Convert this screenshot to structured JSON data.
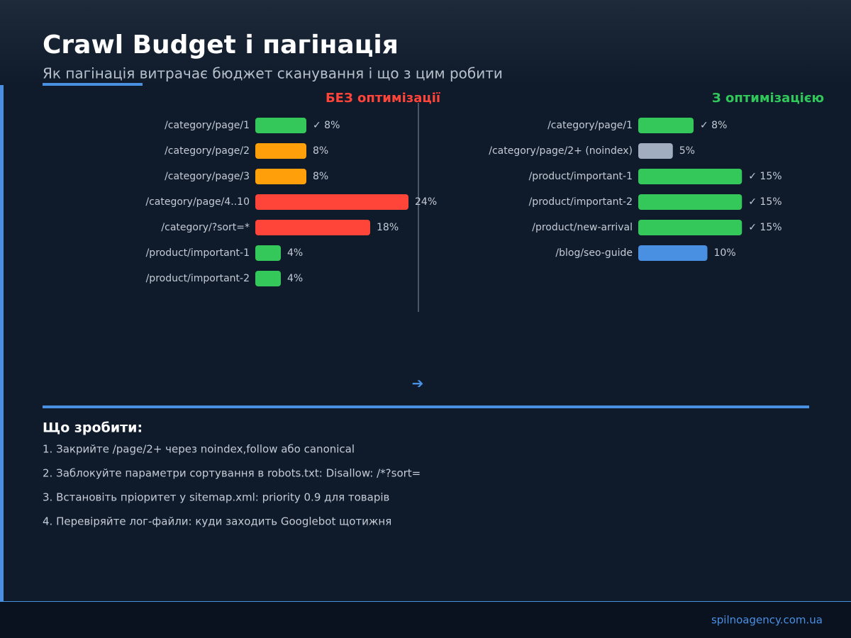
{
  "header": {
    "title": "Crawl Budget і пагінація",
    "subtitle": "Як пагінація витрачає бюджет сканування і що з цим робити"
  },
  "chart_data": [
    {
      "type": "bar",
      "title": "БЕЗ оптимізації",
      "title_color": "#ff453a",
      "categories": [
        "/category/page/1",
        "/category/page/2",
        "/category/page/3",
        "/category/page/4..10",
        "/category/?sort=*",
        "/product/important-1",
        "/product/important-2"
      ],
      "values": [
        8,
        8,
        8,
        24,
        18,
        4,
        4
      ],
      "value_labels": [
        "✓ 8%",
        "8%",
        "8%",
        "24%",
        "18%",
        "4%",
        "4%"
      ],
      "colors": [
        "#34c759",
        "#ff9f0a",
        "#ff9f0a",
        "#ff453a",
        "#ff453a",
        "#34c759",
        "#34c759"
      ]
    },
    {
      "type": "bar",
      "title": "З оптимізацією",
      "title_color": "#30c85a",
      "categories": [
        "/category/page/1",
        "/category/page/2+ (noindex)",
        "/product/important-1",
        "/product/important-2",
        "/product/new-arrival",
        "/blog/seo-guide"
      ],
      "values": [
        8,
        5,
        15,
        15,
        15,
        10
      ],
      "value_labels": [
        "✓ 8%",
        "5%",
        "✓ 15%",
        "✓ 15%",
        "✓ 15%",
        "10%"
      ],
      "colors": [
        "#34c759",
        "#a0aec0",
        "#34c759",
        "#34c759",
        "#34c759",
        "#4a90e2"
      ]
    }
  ],
  "arrow": "➔",
  "actions": {
    "title": "Що зробити:",
    "items": [
      "1. Закрийте /page/2+ через noindex,follow або canonical",
      "2. Заблокуйте параметри сортування в robots.txt: Disallow: /*?sort=",
      "3. Встановіть пріоритет у sitemap.xml: priority 0.9 для товарів",
      "4. Перевіряйте лог-файли: куди заходить Googlebot щотижня"
    ]
  },
  "footer": "spilnoagency.com.ua"
}
